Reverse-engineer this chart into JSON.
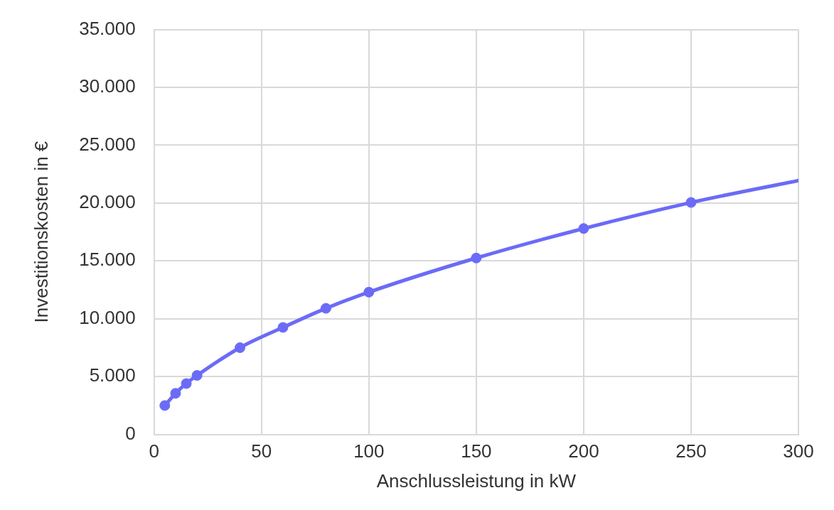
{
  "chart_data": {
    "type": "line",
    "xlabel": "Anschlussleistung in kW",
    "ylabel": "Investitionskosten in €",
    "xlim": [
      0,
      300
    ],
    "xticks": [
      0,
      50,
      100,
      150,
      200,
      250,
      300
    ],
    "ylim": [
      0,
      35000
    ],
    "yticks": [
      {
        "value": 0,
        "label": "0"
      },
      {
        "value": 5000,
        "label": "5.000"
      },
      {
        "value": 10000,
        "label": "10.000"
      },
      {
        "value": 15000,
        "label": "15.000"
      },
      {
        "value": 20000,
        "label": "20.000"
      },
      {
        "value": 25000,
        "label": "25.000"
      },
      {
        "value": 30000,
        "label": "30.000"
      },
      {
        "value": 35000,
        "label": "35.000"
      }
    ],
    "grid": true,
    "legend": false,
    "series": [
      {
        "type": "line",
        "marker": "none",
        "color": "#6b6bf7",
        "x": [
          5,
          10,
          15,
          20,
          40,
          60,
          80,
          100,
          150,
          200,
          250,
          300
        ],
        "values": [
          2500,
          3550,
          4400,
          5100,
          7500,
          9250,
          10900,
          12300,
          15250,
          17800,
          20050,
          21950
        ]
      },
      {
        "type": "scatter",
        "marker": "circle",
        "color": "#6b6bf7",
        "x": [
          5,
          10,
          15,
          20,
          40,
          60,
          80,
          100,
          150,
          200,
          250
        ],
        "values": [
          2500,
          3550,
          4400,
          5100,
          7500,
          9250,
          10900,
          12300,
          15250,
          17800,
          20050
        ]
      }
    ]
  }
}
